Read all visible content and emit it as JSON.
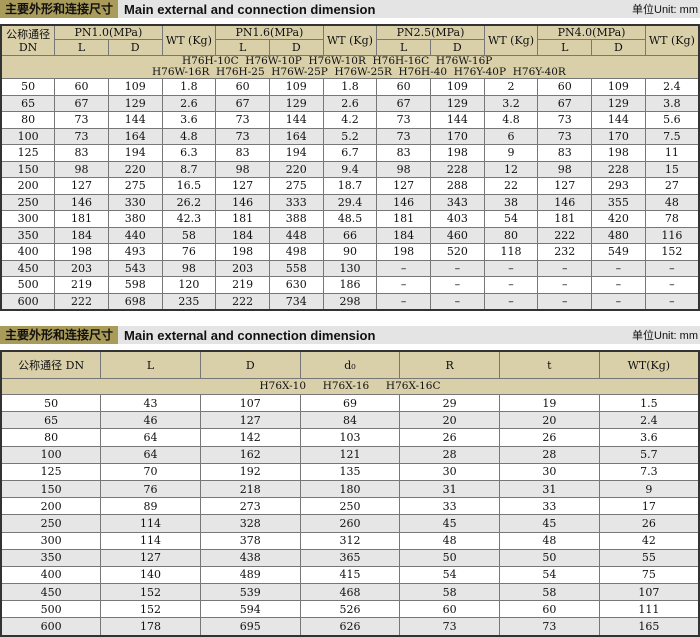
{
  "section1": {
    "title_cn": "主要外形和连接尺寸",
    "title_en": "Main external and connection dimension",
    "unit": "单位Unit: mm",
    "headers": {
      "dn": "公称通径 DN",
      "groups": [
        "PN1.0(MPa)",
        "PN1.6(MPa)",
        "PN2.5(MPa)",
        "PN4.0(MPa)"
      ],
      "wt": "WT (Kg)",
      "l": "L",
      "d": "D"
    },
    "models_line1": "H76H-10C  H76W-10P  H76W-10R  H76H-16C  H76W-16P",
    "models_line2": "H76W-16R  H76H-25  H76W-25P  H76W-25R  H76H-40  H76Y-40P  H76Y-40R",
    "rows": [
      [
        "50",
        "60",
        "109",
        "1.8",
        "60",
        "109",
        "1.8",
        "60",
        "109",
        "2",
        "60",
        "109",
        "2.4"
      ],
      [
        "65",
        "67",
        "129",
        "2.6",
        "67",
        "129",
        "2.6",
        "67",
        "129",
        "3.2",
        "67",
        "129",
        "3.8"
      ],
      [
        "80",
        "73",
        "144",
        "3.6",
        "73",
        "144",
        "4.2",
        "73",
        "144",
        "4.8",
        "73",
        "144",
        "5.6"
      ],
      [
        "100",
        "73",
        "164",
        "4.8",
        "73",
        "164",
        "5.2",
        "73",
        "170",
        "6",
        "73",
        "170",
        "7.5"
      ],
      [
        "125",
        "83",
        "194",
        "6.3",
        "83",
        "194",
        "6.7",
        "83",
        "198",
        "9",
        "83",
        "198",
        "11"
      ],
      [
        "150",
        "98",
        "220",
        "8.7",
        "98",
        "220",
        "9.4",
        "98",
        "228",
        "12",
        "98",
        "228",
        "15"
      ],
      [
        "200",
        "127",
        "275",
        "16.5",
        "127",
        "275",
        "18.7",
        "127",
        "288",
        "22",
        "127",
        "293",
        "27"
      ],
      [
        "250",
        "146",
        "330",
        "26.2",
        "146",
        "333",
        "29.4",
        "146",
        "343",
        "38",
        "146",
        "355",
        "48"
      ],
      [
        "300",
        "181",
        "380",
        "42.3",
        "181",
        "388",
        "48.5",
        "181",
        "403",
        "54",
        "181",
        "420",
        "78"
      ],
      [
        "350",
        "184",
        "440",
        "58",
        "184",
        "448",
        "66",
        "184",
        "460",
        "80",
        "222",
        "480",
        "116"
      ],
      [
        "400",
        "198",
        "493",
        "76",
        "198",
        "498",
        "90",
        "198",
        "520",
        "118",
        "232",
        "549",
        "152"
      ],
      [
        "450",
        "203",
        "543",
        "98",
        "203",
        "558",
        "130",
        "–",
        "–",
        "–",
        "–",
        "–",
        "–"
      ],
      [
        "500",
        "219",
        "598",
        "120",
        "219",
        "630",
        "186",
        "–",
        "–",
        "–",
        "–",
        "–",
        "–"
      ],
      [
        "600",
        "222",
        "698",
        "235",
        "222",
        "734",
        "298",
        "–",
        "–",
        "–",
        "–",
        "–",
        "–"
      ]
    ]
  },
  "section2": {
    "title_cn": "主要外形和连接尺寸",
    "title_en": "Main external and connection dimension",
    "unit": "单位Unit: mm",
    "headers": [
      "公称通径 DN",
      "L",
      "D",
      "d₀",
      "R",
      "t",
      "WT(Kg)"
    ],
    "models": "H76X-10     H76X-16     H76X-16C",
    "rows": [
      [
        "50",
        "43",
        "107",
        "69",
        "29",
        "19",
        "1.5"
      ],
      [
        "65",
        "46",
        "127",
        "84",
        "20",
        "20",
        "2.4"
      ],
      [
        "80",
        "64",
        "142",
        "103",
        "26",
        "26",
        "3.6"
      ],
      [
        "100",
        "64",
        "162",
        "121",
        "28",
        "28",
        "5.7"
      ],
      [
        "125",
        "70",
        "192",
        "135",
        "30",
        "30",
        "7.3"
      ],
      [
        "150",
        "76",
        "218",
        "180",
        "31",
        "31",
        "9"
      ],
      [
        "200",
        "89",
        "273",
        "250",
        "33",
        "33",
        "17"
      ],
      [
        "250",
        "114",
        "328",
        "260",
        "45",
        "45",
        "26"
      ],
      [
        "300",
        "114",
        "378",
        "312",
        "48",
        "48",
        "42"
      ],
      [
        "350",
        "127",
        "438",
        "365",
        "50",
        "50",
        "55"
      ],
      [
        "400",
        "140",
        "489",
        "415",
        "54",
        "54",
        "75"
      ],
      [
        "450",
        "152",
        "539",
        "468",
        "58",
        "58",
        "107"
      ],
      [
        "500",
        "152",
        "594",
        "526",
        "60",
        "60",
        "111"
      ],
      [
        "600",
        "178",
        "695",
        "626",
        "73",
        "73",
        "165"
      ]
    ]
  }
}
